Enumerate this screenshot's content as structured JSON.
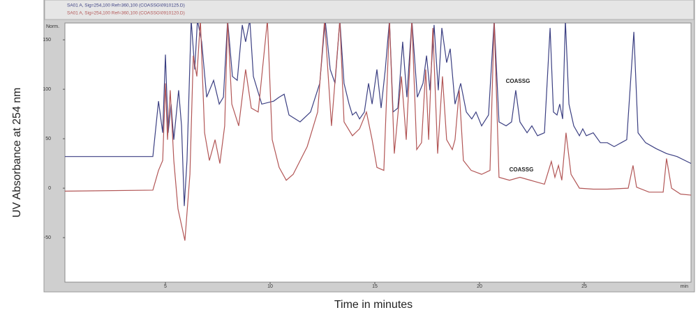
{
  "chart_data": {
    "type": "line",
    "y_title": "UV Absorbance at 254 nm",
    "x_title": "Time in minutes",
    "y_unit": "Norm.",
    "x_unit": "min",
    "xlim": [
      0.2,
      30.1
    ],
    "ylim": [
      -95,
      167
    ],
    "xticks": [
      5,
      10,
      15,
      20,
      25
    ],
    "yticks": [
      -50,
      0,
      50,
      100,
      150
    ],
    "annotations": [
      "COASSG",
      "COASSG"
    ],
    "series": [
      {
        "name": "SA01 A, Sig=254,100 Ref=360,100 (COASSG\\0910125.D)",
        "color": "#3b3f82",
        "x": [
          0.2,
          4.4,
          4.67,
          4.87,
          5.0,
          5.13,
          5.27,
          5.4,
          5.63,
          5.77,
          5.9,
          6.03,
          6.23,
          6.4,
          6.53,
          6.73,
          6.97,
          7.3,
          7.57,
          7.77,
          7.97,
          8.2,
          8.43,
          8.67,
          8.83,
          9.03,
          9.2,
          9.6,
          10.17,
          10.43,
          10.67,
          10.9,
          11.43,
          11.93,
          12.37,
          12.63,
          12.87,
          13.1,
          13.33,
          13.53,
          13.77,
          13.93,
          14.1,
          14.27,
          14.5,
          14.7,
          14.87,
          15.1,
          15.3,
          15.5,
          15.7,
          15.87,
          16.1,
          16.33,
          16.53,
          16.77,
          17.03,
          17.3,
          17.47,
          17.63,
          17.83,
          18.03,
          18.2,
          18.43,
          18.6,
          18.83,
          19.1,
          19.37,
          19.63,
          19.83,
          20.1,
          20.43,
          20.7,
          20.93,
          21.27,
          21.53,
          21.73,
          21.93,
          22.27,
          22.5,
          22.77,
          23.1,
          23.37,
          23.53,
          23.7,
          23.83,
          23.97,
          24.1,
          24.27,
          24.5,
          24.77,
          24.93,
          25.1,
          25.43,
          25.77,
          26.1,
          26.43,
          26.77,
          27.03,
          27.37,
          27.57,
          27.93,
          28.43,
          28.93,
          29.43,
          30.1
        ],
        "values": [
          32,
          32,
          88,
          56,
          135,
          56,
          85,
          49,
          99,
          63,
          -18,
          28,
          170,
          120,
          170,
          148,
          92,
          109,
          85,
          92,
          170,
          113,
          109,
          165,
          148,
          170,
          113,
          85,
          88,
          92,
          95,
          74,
          67,
          77,
          106,
          170,
          120,
          106,
          170,
          106,
          85,
          74,
          77,
          70,
          77,
          106,
          85,
          120,
          81,
          120,
          170,
          77,
          81,
          148,
          92,
          170,
          92,
          106,
          134,
          99,
          165,
          99,
          162,
          127,
          141,
          85,
          106,
          77,
          70,
          77,
          63,
          74,
          170,
          67,
          63,
          67,
          99,
          67,
          56,
          63,
          53,
          56,
          162,
          77,
          74,
          85,
          70,
          170,
          85,
          63,
          53,
          60,
          53,
          56,
          46,
          46,
          42,
          46,
          49,
          158,
          56,
          46,
          40,
          35,
          32,
          25
        ]
      },
      {
        "name": "SA01 A, Sig=254,100 Ref=360,100 (COASSG\\0910120.D)",
        "color": "#b25656",
        "x": [
          0.2,
          4.4,
          4.67,
          4.87,
          5.0,
          5.1,
          5.23,
          5.4,
          5.6,
          5.93,
          6.17,
          6.33,
          6.5,
          6.67,
          6.87,
          7.1,
          7.37,
          7.6,
          7.83,
          7.97,
          8.17,
          8.5,
          8.83,
          9.1,
          9.43,
          9.87,
          10.1,
          10.43,
          10.77,
          11.1,
          11.77,
          12.27,
          12.6,
          12.93,
          13.33,
          13.53,
          13.93,
          14.27,
          14.6,
          14.87,
          15.1,
          15.43,
          15.7,
          15.93,
          16.27,
          16.5,
          16.77,
          17.0,
          17.23,
          17.43,
          17.57,
          17.77,
          18.0,
          18.23,
          18.43,
          18.7,
          18.83,
          19.03,
          19.23,
          19.6,
          20.1,
          20.5,
          20.7,
          20.93,
          21.43,
          21.93,
          22.43,
          23.1,
          23.43,
          23.6,
          23.77,
          23.93,
          24.13,
          24.37,
          24.77,
          25.43,
          26.1,
          27.1,
          27.33,
          27.5,
          28.1,
          28.77,
          28.93,
          29.17,
          29.6,
          30.1
        ],
        "values": [
          -3,
          -2,
          18,
          28,
          106,
          49,
          99,
          28,
          -21,
          -53,
          14,
          134,
          113,
          170,
          56,
          28,
          49,
          25,
          63,
          170,
          85,
          63,
          120,
          81,
          77,
          170,
          49,
          21,
          8,
          14,
          42,
          77,
          170,
          63,
          170,
          67,
          53,
          60,
          77,
          49,
          21,
          18,
          170,
          35,
          113,
          49,
          170,
          39,
          46,
          120,
          49,
          162,
          35,
          113,
          49,
          39,
          49,
          99,
          28,
          18,
          14,
          18,
          170,
          11,
          8,
          11,
          8,
          4,
          27,
          11,
          23,
          8,
          56,
          14,
          0,
          -1,
          -1,
          0,
          23,
          1,
          -4,
          -4,
          30,
          0,
          -6,
          -7
        ]
      }
    ]
  }
}
